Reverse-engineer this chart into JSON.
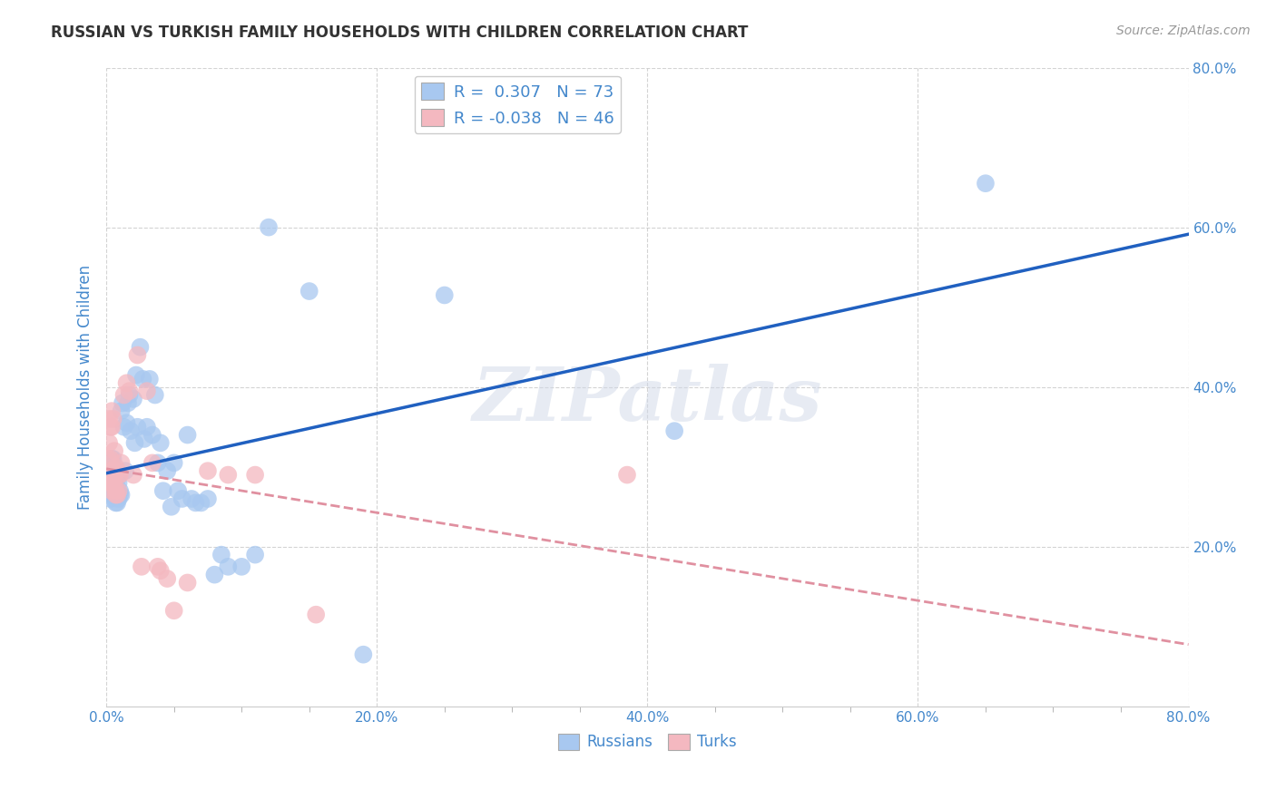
{
  "title": "RUSSIAN VS TURKISH FAMILY HOUSEHOLDS WITH CHILDREN CORRELATION CHART",
  "source": "Source: ZipAtlas.com",
  "ylabel": "Family Households with Children",
  "xlim": [
    0,
    0.8
  ],
  "ylim": [
    0,
    0.8
  ],
  "xtick_labels": [
    "0.0%",
    "",
    "",
    "",
    "20.0%",
    "",
    "",
    "",
    "40.0%",
    "",
    "",
    "",
    "60.0%",
    "",
    "",
    "",
    "80.0%"
  ],
  "xtick_vals": [
    0.0,
    0.05,
    0.1,
    0.15,
    0.2,
    0.25,
    0.3,
    0.35,
    0.4,
    0.45,
    0.5,
    0.55,
    0.6,
    0.65,
    0.7,
    0.75,
    0.8
  ],
  "ytick_labels": [
    "20.0%",
    "40.0%",
    "60.0%",
    "80.0%"
  ],
  "ytick_vals": [
    0.2,
    0.4,
    0.6,
    0.8
  ],
  "russian_R": 0.307,
  "russian_N": 73,
  "turkish_R": -0.038,
  "turkish_N": 46,
  "russian_color": "#a8c8f0",
  "turkish_color": "#f4b8c0",
  "russian_line_color": "#2060c0",
  "turkish_line_color": "#e090a0",
  "watermark": "ZIPatlas",
  "background_color": "#ffffff",
  "grid_color": "#c8c8c8",
  "text_color": "#4488cc",
  "russians_x": [
    0.001,
    0.002,
    0.002,
    0.003,
    0.003,
    0.003,
    0.003,
    0.004,
    0.004,
    0.004,
    0.004,
    0.005,
    0.005,
    0.005,
    0.005,
    0.006,
    0.006,
    0.006,
    0.006,
    0.007,
    0.007,
    0.007,
    0.008,
    0.008,
    0.008,
    0.009,
    0.009,
    0.01,
    0.01,
    0.011,
    0.011,
    0.012,
    0.013,
    0.014,
    0.015,
    0.016,
    0.017,
    0.018,
    0.02,
    0.021,
    0.022,
    0.023,
    0.025,
    0.027,
    0.028,
    0.03,
    0.032,
    0.034,
    0.036,
    0.038,
    0.04,
    0.042,
    0.045,
    0.048,
    0.05,
    0.053,
    0.056,
    0.06,
    0.063,
    0.066,
    0.07,
    0.075,
    0.08,
    0.085,
    0.09,
    0.1,
    0.11,
    0.12,
    0.15,
    0.19,
    0.25,
    0.42,
    0.65
  ],
  "russians_y": [
    0.29,
    0.305,
    0.28,
    0.295,
    0.3,
    0.27,
    0.26,
    0.285,
    0.31,
    0.275,
    0.265,
    0.295,
    0.31,
    0.28,
    0.265,
    0.295,
    0.285,
    0.27,
    0.265,
    0.285,
    0.275,
    0.255,
    0.285,
    0.27,
    0.255,
    0.28,
    0.26,
    0.265,
    0.27,
    0.265,
    0.37,
    0.38,
    0.35,
    0.295,
    0.355,
    0.38,
    0.39,
    0.345,
    0.385,
    0.33,
    0.415,
    0.35,
    0.45,
    0.41,
    0.335,
    0.35,
    0.41,
    0.34,
    0.39,
    0.305,
    0.33,
    0.27,
    0.295,
    0.25,
    0.305,
    0.27,
    0.26,
    0.34,
    0.26,
    0.255,
    0.255,
    0.26,
    0.165,
    0.19,
    0.175,
    0.175,
    0.19,
    0.6,
    0.52,
    0.065,
    0.515,
    0.345,
    0.655
  ],
  "turks_x": [
    0.001,
    0.001,
    0.002,
    0.002,
    0.003,
    0.003,
    0.003,
    0.003,
    0.004,
    0.004,
    0.004,
    0.004,
    0.004,
    0.005,
    0.005,
    0.005,
    0.006,
    0.006,
    0.006,
    0.007,
    0.007,
    0.007,
    0.008,
    0.008,
    0.009,
    0.009,
    0.01,
    0.011,
    0.013,
    0.015,
    0.017,
    0.02,
    0.023,
    0.026,
    0.03,
    0.034,
    0.038,
    0.04,
    0.045,
    0.05,
    0.06,
    0.075,
    0.09,
    0.11,
    0.155,
    0.385
  ],
  "turks_y": [
    0.285,
    0.31,
    0.36,
    0.33,
    0.285,
    0.31,
    0.35,
    0.29,
    0.37,
    0.35,
    0.295,
    0.28,
    0.27,
    0.36,
    0.295,
    0.285,
    0.32,
    0.29,
    0.275,
    0.3,
    0.27,
    0.265,
    0.295,
    0.265,
    0.29,
    0.27,
    0.29,
    0.305,
    0.39,
    0.405,
    0.395,
    0.29,
    0.44,
    0.175,
    0.395,
    0.305,
    0.175,
    0.17,
    0.16,
    0.12,
    0.155,
    0.295,
    0.29,
    0.29,
    0.115,
    0.29
  ]
}
